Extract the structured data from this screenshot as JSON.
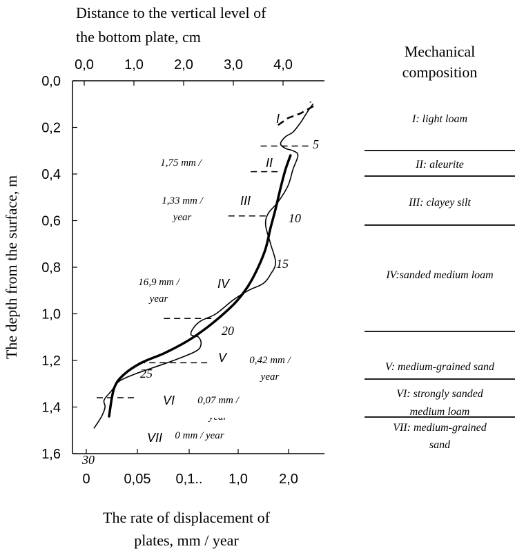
{
  "chart_data": {
    "type": "line",
    "top_axis": {
      "title_line1": "Distance to the vertical level of",
      "title_line2": "the bottom plate, cm",
      "ticks": [
        "0,0",
        "1,0",
        "2,0",
        "3,0",
        "4,0"
      ],
      "range": [
        0,
        4.7
      ]
    },
    "left_axis": {
      "title": "The depth from the surface, m",
      "ticks": [
        "0,0",
        "0,2",
        "0,4",
        "0,6",
        "0,8",
        "1,0",
        "1,2",
        "1,4",
        "1,6"
      ],
      "range": [
        0,
        1.6
      ],
      "inverted": true
    },
    "bottom_axis": {
      "title_line1": "The rate of displacement of",
      "title_line2": "plates, mm / year",
      "ticks": [
        "0",
        "0,05",
        "0,1..",
        "1,0",
        "2,0"
      ]
    },
    "layer_labels": [
      "I",
      "II",
      "III",
      "IV",
      "V",
      "VI",
      "VII"
    ],
    "rate_labels": [
      [
        "1,75 mm /"
      ],
      [
        "1,33 mm /",
        "year"
      ],
      [
        "16,9 mm /",
        "year"
      ],
      [
        "0,42 mm /",
        "year"
      ],
      [
        "0,07 mm /",
        "year"
      ],
      [
        "0 mm / year"
      ]
    ],
    "number_labels": [
      "5",
      "10",
      "15",
      "20",
      "25",
      "30"
    ],
    "series": [
      {
        "style": "thin-wavy",
        "x": [
          4.6,
          4.5,
          4.35,
          4.2,
          4.05,
          3.95,
          4.05,
          4.2,
          4.3,
          4.2,
          4.1,
          3.9,
          3.7,
          3.65,
          3.75,
          3.85,
          3.75,
          3.6,
          3.3,
          3.0,
          2.65,
          2.35,
          2.2,
          2.15,
          2.3,
          2.35,
          2.25,
          1.8,
          1.4,
          1.0,
          0.7,
          0.55,
          0.4,
          0.42,
          0.35,
          0.2
        ],
        "y": [
          0.1,
          0.13,
          0.18,
          0.22,
          0.24,
          0.27,
          0.29,
          0.3,
          0.32,
          0.38,
          0.45,
          0.52,
          0.57,
          0.62,
          0.7,
          0.78,
          0.83,
          0.87,
          0.9,
          0.94,
          1.0,
          1.03,
          1.06,
          1.09,
          1.1,
          1.13,
          1.16,
          1.2,
          1.23,
          1.26,
          1.29,
          1.33,
          1.37,
          1.4,
          1.44,
          1.49
        ]
      },
      {
        "style": "thick-smooth",
        "x": [
          4.15,
          4.05,
          3.95,
          3.85,
          3.75,
          3.65,
          3.5,
          3.3,
          3.05,
          2.75,
          2.4,
          2.05,
          1.6,
          1.15,
          0.8,
          0.6,
          0.5
        ],
        "y": [
          0.32,
          0.38,
          0.46,
          0.55,
          0.63,
          0.72,
          0.8,
          0.88,
          0.95,
          1.01,
          1.07,
          1.12,
          1.17,
          1.21,
          1.26,
          1.32,
          1.44
        ]
      }
    ],
    "dashed_segments": [
      {
        "x": [
          3.55,
          4.55
        ],
        "y": [
          0.28,
          0.28
        ]
      },
      {
        "x": [
          3.35,
          3.95
        ],
        "y": [
          0.39,
          0.39
        ]
      },
      {
        "x": [
          2.9,
          3.65
        ],
        "y": [
          0.58,
          0.58
        ]
      },
      {
        "x": [
          1.6,
          2.6
        ],
        "y": [
          1.02,
          1.02
        ]
      },
      {
        "x": [
          1.1,
          2.55
        ],
        "y": [
          1.21,
          1.21
        ]
      },
      {
        "x": [
          0.25,
          1.05
        ],
        "y": [
          1.36,
          1.36
        ]
      }
    ],
    "dashed_curve": {
      "x": [
        3.9,
        4.1,
        4.35,
        4.6,
        4.55
      ],
      "y": [
        0.19,
        0.16,
        0.14,
        0.11,
        0.09
      ]
    }
  },
  "composition": {
    "header_line1": "Mechanical",
    "header_line2": "composition",
    "layers": [
      {
        "lines": [
          "I: light loam"
        ]
      },
      {
        "lines": [
          "II: aleurite"
        ]
      },
      {
        "lines": [
          "III: clayey silt"
        ]
      },
      {
        "lines": [
          "IV:sanded medium loam"
        ]
      },
      {
        "lines": [
          "V: medium-grained sand"
        ]
      },
      {
        "lines": [
          "VI: strongly sanded",
          "medium loam"
        ]
      },
      {
        "lines": [
          "VII: medium-grained",
          "sand"
        ]
      }
    ]
  }
}
